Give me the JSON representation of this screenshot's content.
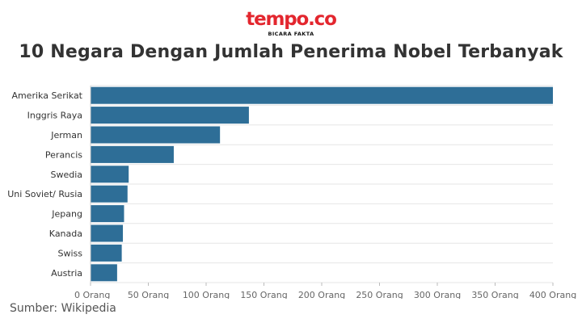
{
  "logo": {
    "wordmark": "tempo.co",
    "tagline": "BICARA FAKTA"
  },
  "title": "10 Negara Dengan Jumlah Penerima Nobel Terbanyak",
  "source": "Sumber: Wikipedia",
  "colors": {
    "bar": "#2e6e97",
    "brand": "#e3262e",
    "grid": "#e6e6e6"
  },
  "chart_data": {
    "type": "bar",
    "orientation": "horizontal",
    "title": "10 Negara Dengan Jumlah Penerima Nobel Terbanyak",
    "categories": [
      "Amerika Serikat",
      "Inggris Raya",
      "Jerman",
      "Perancis",
      "Swedia",
      "Uni Soviet/ Rusia",
      "Jepang",
      "Kanada",
      "Swiss",
      "Austria"
    ],
    "values": [
      400,
      137,
      112,
      72,
      33,
      32,
      29,
      28,
      27,
      23
    ],
    "xlim": [
      0,
      400
    ],
    "x_ticks": [
      0,
      50,
      100,
      150,
      200,
      250,
      300,
      350,
      400
    ],
    "x_tick_labels": [
      "0 Orang",
      "50 Orang",
      "100 Orang",
      "150 Orang",
      "200 Orang",
      "250 Orang",
      "300 Orang",
      "350 Orang",
      "400 Orang"
    ],
    "grid": true,
    "legend": "none"
  }
}
